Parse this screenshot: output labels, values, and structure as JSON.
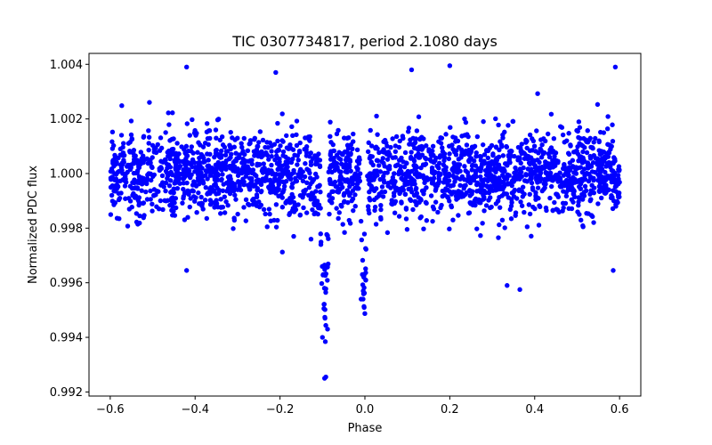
{
  "chart_data": {
    "type": "scatter",
    "title": "TIC 0307734817, period 2.1080 days",
    "xlabel": "Phase",
    "ylabel": "Normalized PDC flux",
    "xlim": [
      -0.65,
      0.65
    ],
    "ylim": [
      0.99185,
      1.0044
    ],
    "x_ticks": [
      -0.6,
      -0.4,
      -0.2,
      0.0,
      0.2,
      0.4,
      0.6
    ],
    "x_tick_labels": [
      "−0.6",
      "−0.4",
      "−0.2",
      "0.0",
      "0.2",
      "0.4",
      "0.6"
    ],
    "y_ticks": [
      0.992,
      0.994,
      0.996,
      0.998,
      1.0,
      1.002,
      1.004
    ],
    "y_tick_labels": [
      "0.992",
      "0.994",
      "0.996",
      "0.998",
      "1.000",
      "1.002",
      "1.004"
    ],
    "grid": false,
    "marker_color": "#0000ff",
    "series": [
      {
        "name": "PDC flux",
        "baseline": 1.0,
        "scatter_sigma": 0.0009,
        "n_points": 2400,
        "x_range": [
          -0.6,
          0.6
        ],
        "dips": [
          {
            "center": -0.095,
            "half_width": 0.012,
            "depth": 0.0045
          },
          {
            "center": -0.003,
            "half_width": 0.009,
            "depth": 0.004
          }
        ],
        "notable_points": [
          {
            "x": -0.42,
            "y": 1.0039
          },
          {
            "x": 0.2,
            "y": 1.00395
          },
          {
            "x": 0.59,
            "y": 1.0039
          },
          {
            "x": 0.11,
            "y": 1.0038
          },
          {
            "x": -0.21,
            "y": 1.0037
          },
          {
            "x": -0.42,
            "y": 0.99645
          },
          {
            "x": 0.585,
            "y": 0.99645
          },
          {
            "x": 0.335,
            "y": 0.9959
          },
          {
            "x": 0.365,
            "y": 0.99575
          },
          {
            "x": -0.095,
            "y": 0.9925
          },
          {
            "x": -0.092,
            "y": 0.99255
          },
          {
            "x": -0.1,
            "y": 0.994
          },
          {
            "x": -0.088,
            "y": 0.9943
          },
          {
            "x": -0.094,
            "y": 0.9947
          },
          {
            "x": -0.009,
            "y": 0.9954
          },
          {
            "x": -0.004,
            "y": 0.9957
          },
          {
            "x": 0.002,
            "y": 0.9961
          },
          {
            "x": -0.006,
            "y": 0.9963
          }
        ]
      }
    ]
  }
}
